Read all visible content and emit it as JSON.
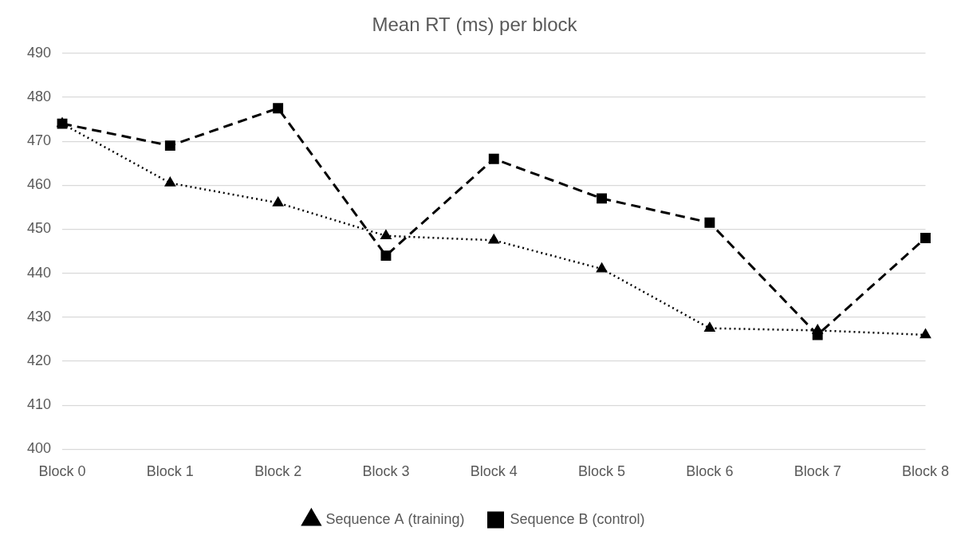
{
  "chart_data": {
    "type": "line",
    "title": "Mean RT (ms) per block",
    "categories": [
      "Block 0",
      "Block 1",
      "Block 2",
      "Block 3",
      "Block 4",
      "Block 5",
      "Block 6",
      "Block 7",
      "Block 8"
    ],
    "series": [
      {
        "name": "Sequence A (training)",
        "color": "#000000",
        "line_style": "dotted",
        "marker": "triangle",
        "values": [
          474,
          460.5,
          456,
          448.5,
          447.5,
          441,
          427.5,
          427,
          426
        ]
      },
      {
        "name": "Sequence B (control)",
        "color": "#000000",
        "line_style": "dashed",
        "marker": "square",
        "values": [
          474,
          469,
          477.5,
          444,
          466,
          457,
          451.5,
          426,
          448
        ]
      }
    ],
    "ylim": [
      400,
      490
    ],
    "yticks": [
      400,
      410,
      420,
      430,
      440,
      450,
      460,
      470,
      480,
      490
    ],
    "grid": true,
    "legend": "bottom"
  }
}
